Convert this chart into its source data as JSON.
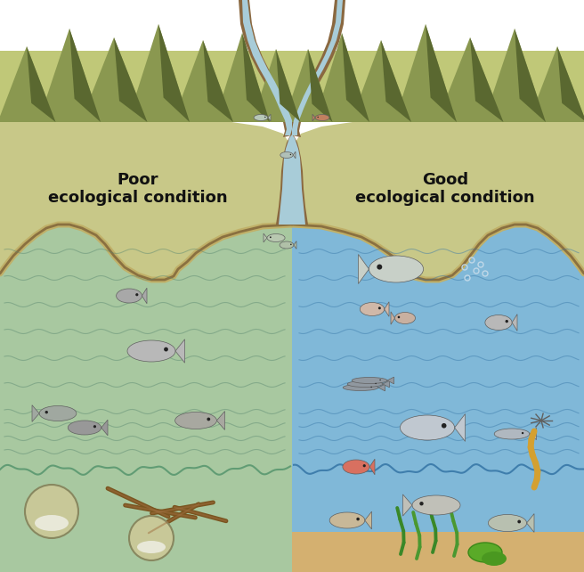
{
  "subtitle1": "Poor\necological condition",
  "subtitle2": "Good\necological condition",
  "bg_color": "#ffffff",
  "land_color": "#c8c888",
  "land_color_dark": "#a8a860",
  "land_side_color": "#b0a868",
  "river_water_color": "#a8ccd8",
  "river_sediment_color": "#8a6840",
  "estuary_left_color": "#a8c8a0",
  "estuary_right_color": "#80b8d8",
  "bottom_left_color": "#111111",
  "bottom_right_color": "#c8a060",
  "bottom_sandy_color": "#d4b070",
  "shore_left_color": "#b0c888",
  "shore_right_color": "#80b0d0",
  "wave_left_color": "#6a9870",
  "wave_right_color": "#4888b8",
  "mountain_main": "#8a9850",
  "mountain_shadow": "#5a6830",
  "mountain_bg": "#c0c878",
  "text_color": "#111111",
  "label_fontsize": 13,
  "divider_color": "#c0b890",
  "shore_tan_color": "#c0b068"
}
